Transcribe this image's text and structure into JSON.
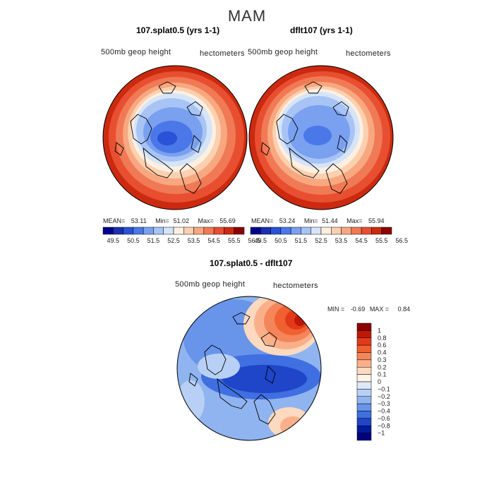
{
  "season_title": "MAM",
  "panels": [
    {
      "title": "107.splat0.5 (yrs 1-1)",
      "field_label": "500mb geop height",
      "units_label": "hectometers",
      "stats": {
        "mean_label": "MEAN=",
        "mean": "53.11",
        "min_label": "Min=",
        "min": "51.02",
        "max_label": "Max=",
        "max": "55.69"
      }
    },
    {
      "title": "dflt107 (yrs 1-1)",
      "field_label": "500mb geop height",
      "units_label": "hectometers",
      "stats": {
        "mean_label": "MEAN=",
        "mean": "53.24",
        "min_label": "Min=",
        "min": "51.44",
        "max_label": "Max=",
        "max": "55.94"
      }
    },
    {
      "title": "107.splat0.5 - dflt107",
      "field_label": "500mb geop height",
      "units_label": "hectometers",
      "stats": {
        "min_label": "MIN =",
        "min": "-0.69",
        "max_label": "MAX =",
        "max": "0.84"
      }
    }
  ],
  "colorbar_height": {
    "labels": [
      "49.5",
      "50.5",
      "51.5",
      "52.5",
      "53.5",
      "54.5",
      "55.5",
      "56.5"
    ],
    "colors": [
      "#00008b",
      "#1a2fb0",
      "#2a52d6",
      "#4a78e8",
      "#7aa0f0",
      "#a8c4f5",
      "#d6e4f8",
      "#fdf0e0",
      "#fbd0b0",
      "#f8a880",
      "#f07a55",
      "#e84f30",
      "#cc2a10",
      "#8b0000"
    ]
  },
  "colorbar_diff": {
    "labels": [
      "1",
      "0.8",
      "0.6",
      "0.4",
      "0.3",
      "0.2",
      "0.1",
      "0",
      "−0.1",
      "−0.2",
      "−0.3",
      "−0.4",
      "−0.6",
      "−0.8",
      "−1"
    ],
    "colors": [
      "#8b0000",
      "#c01808",
      "#e23a18",
      "#f06030",
      "#f5855a",
      "#f9b08a",
      "#fcd9bf",
      "#fdf3e6",
      "#dce8f8",
      "#b8d0f5",
      "#90b4f0",
      "#6894ea",
      "#3f6fe0",
      "#1f45c8",
      "#001a9a",
      "#000080"
    ]
  },
  "icons": {
    "map": "polar-stereographic-map"
  }
}
